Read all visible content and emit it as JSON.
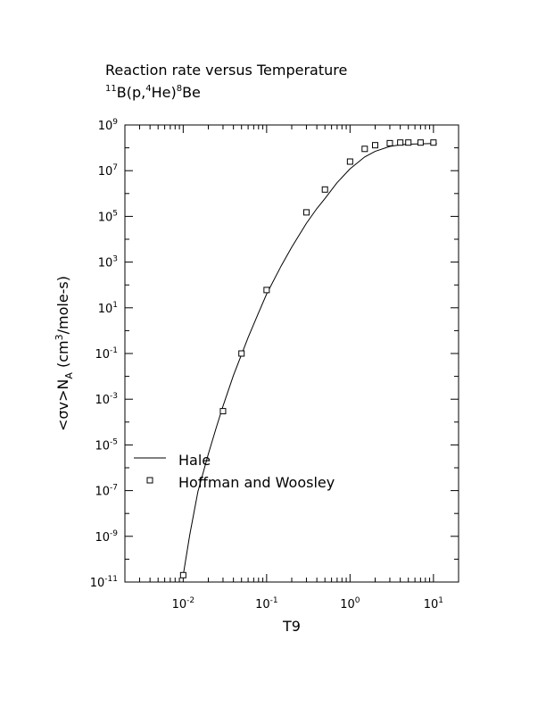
{
  "chart_data": {
    "type": "line",
    "title": "Reaction rate versus Temperature",
    "subtitle": {
      "mass_b": "11",
      "elem_b": "B(p,",
      "mass_he": "4",
      "elem_he": "He)",
      "mass_be": "8",
      "elem_be": "Be"
    },
    "xlabel": "T9",
    "ylabel": {
      "main": "<σv>N",
      "sub": "A",
      "unit_open": " (cm",
      "unit_sup": "3",
      "unit_close": "/mole-s)"
    },
    "x_scale": "log",
    "y_scale": "log",
    "xlim": [
      0.002,
      20
    ],
    "ylim": [
      1e-11,
      1000000000.0
    ],
    "x_tick_exponents": [
      "-2",
      "-1",
      "0",
      "1"
    ],
    "y_tick_exponents": [
      "-11",
      "-9",
      "-7",
      "-5",
      "-3",
      "-1",
      "1",
      "3",
      "5",
      "7",
      "9"
    ],
    "tick_base": "10",
    "legend_position": "bottom-left",
    "series": [
      {
        "name": "Hale",
        "style": "line",
        "color": "#000000",
        "x": [
          0.01,
          0.012,
          0.015,
          0.02,
          0.025,
          0.03,
          0.04,
          0.05,
          0.06,
          0.08,
          0.1,
          0.15,
          0.2,
          0.3,
          0.4,
          0.5,
          0.7,
          1.0,
          1.5,
          2.0,
          3.0,
          4.0,
          5.0,
          7.0,
          10.0,
          11.0
        ],
        "y": [
          2e-11,
          1.2e-09,
          9e-08,
          4e-06,
          6e-05,
          0.0005,
          0.011,
          0.09,
          0.5,
          6,
          40,
          700,
          4500.0,
          50000.0,
          220000.0,
          600000.0,
          3000000.0,
          12000000.0,
          40000000.0,
          70000000.0,
          115000000.0,
          135000000.0,
          145000000.0,
          150000000.0,
          155000000.0,
          155000000.0
        ]
      },
      {
        "name": "Hoffman and Woosley",
        "style": "marker",
        "marker": "square",
        "color": "#000000",
        "x": [
          0.01,
          0.03,
          0.05,
          0.1,
          0.3,
          0.5,
          1.0,
          1.5,
          2.0,
          3.0,
          4.0,
          5.0,
          7.0,
          10.0
        ],
        "y": [
          2e-11,
          0.0003,
          0.1,
          60,
          150000.0,
          1500000.0,
          25000000.0,
          90000000.0,
          130000000.0,
          160000000.0,
          170000000.0,
          170000000.0,
          170000000.0,
          170000000.0
        ]
      }
    ]
  }
}
